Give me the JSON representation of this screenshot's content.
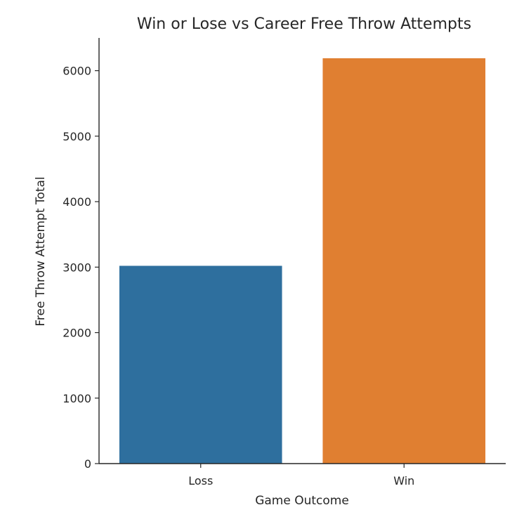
{
  "chart_data": {
    "type": "bar",
    "title": "Win or Lose vs Career Free Throw Attempts",
    "xlabel": "Game Outcome",
    "ylabel": "Free Throw Attempt Total",
    "categories": [
      "Loss",
      "Win"
    ],
    "values": [
      3020,
      6190
    ],
    "colors": [
      "#2e6f9e",
      "#e07f31"
    ],
    "ylim": [
      0,
      6500
    ],
    "yticks": [
      0,
      1000,
      2000,
      3000,
      4000,
      5000,
      6000
    ],
    "grid": false,
    "legend": "none"
  }
}
